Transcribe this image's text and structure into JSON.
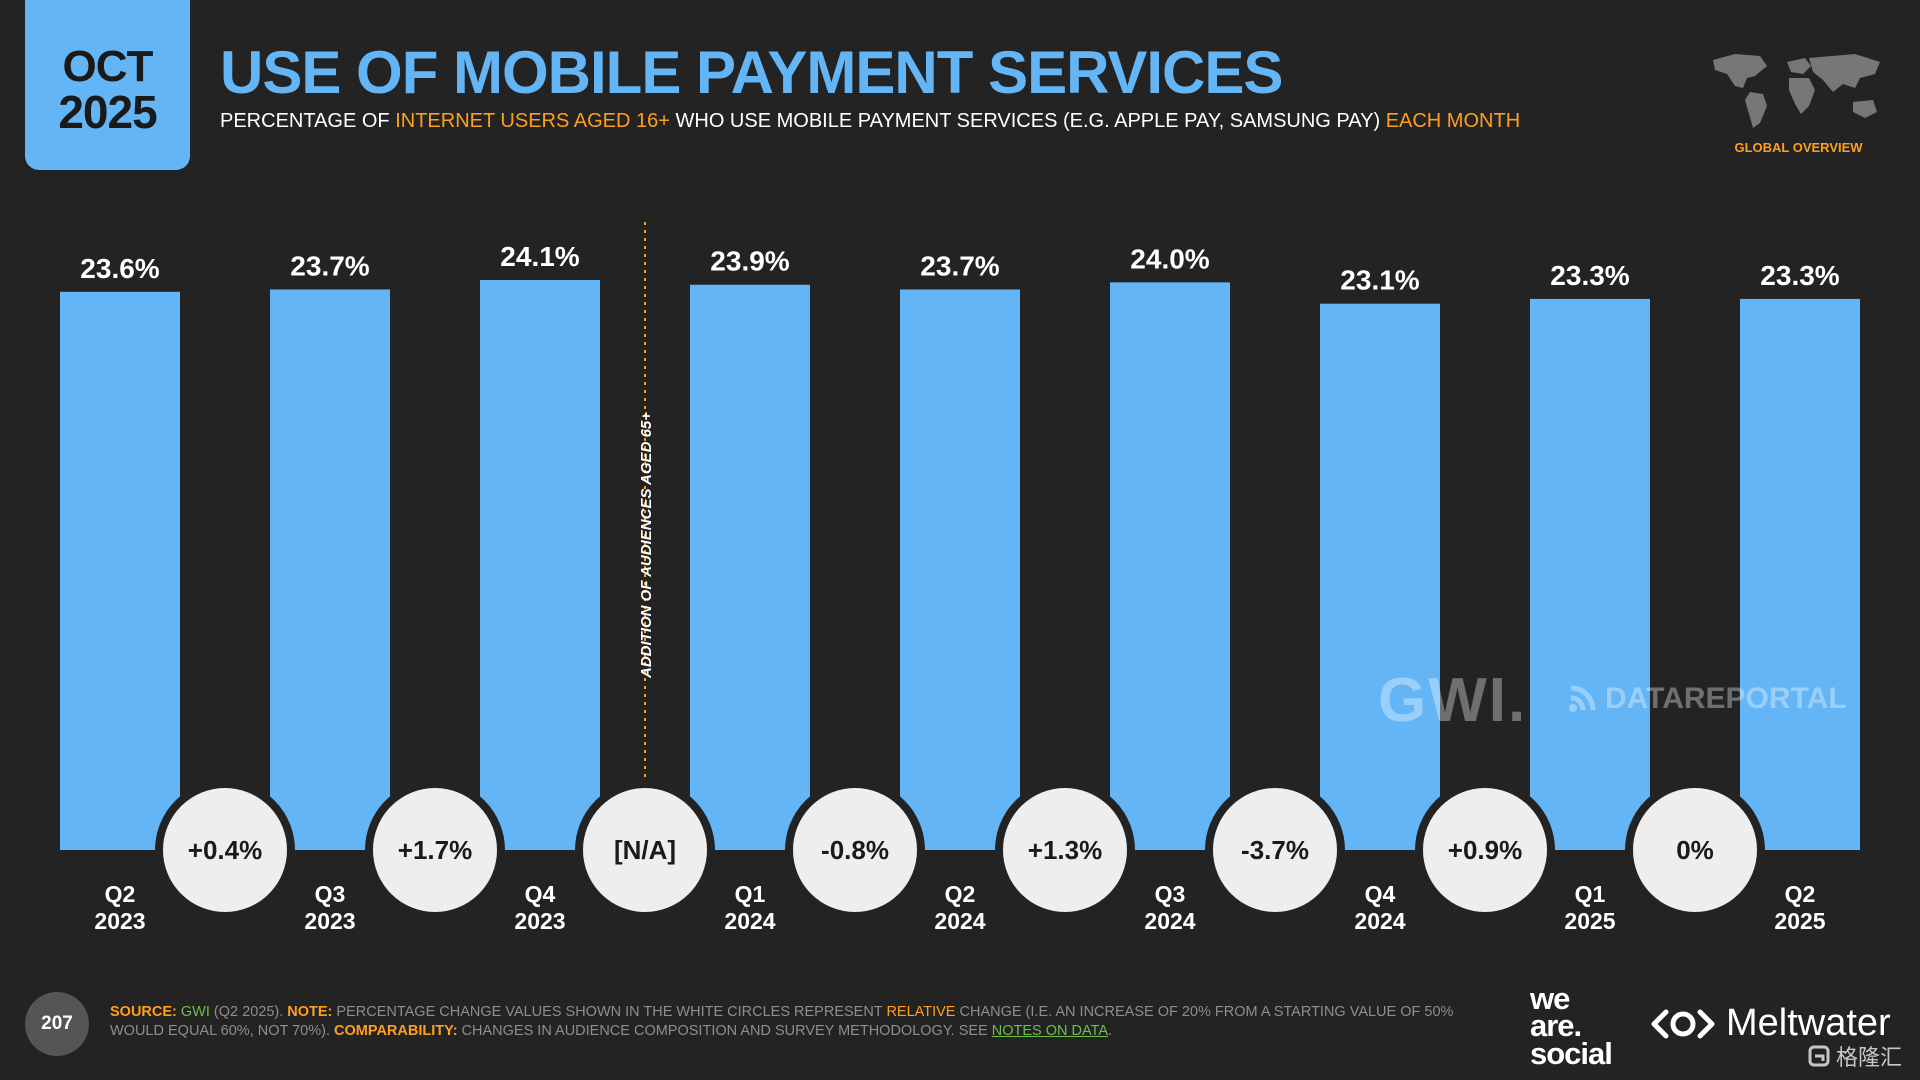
{
  "header": {
    "month": "OCT",
    "year": "2025",
    "title": "USE OF MOBILE PAYMENT SERVICES",
    "subtitle_1": "PERCENTAGE OF ",
    "subtitle_hl1": "INTERNET USERS AGED 16+",
    "subtitle_2": " WHO USE MOBILE PAYMENT SERVICES (E.G. APPLE PAY, SAMSUNG PAY) ",
    "subtitle_hl2": "EACH MONTH",
    "map_label": "GLOBAL OVERVIEW"
  },
  "colors": {
    "background": "#232323",
    "bar": "#64b5f6",
    "accent": "#ff9f1c",
    "circle": "#eeeeee",
    "link": "#6cc04a"
  },
  "chart_data": {
    "type": "bar",
    "categories": [
      "Q2\n2023",
      "Q3\n2023",
      "Q4\n2023",
      "Q1\n2024",
      "Q2\n2024",
      "Q3\n2024",
      "Q4\n2024",
      "Q1\n2025",
      "Q2\n2025"
    ],
    "values": [
      23.6,
      23.7,
      24.1,
      23.9,
      23.7,
      24.0,
      23.1,
      23.3,
      23.3
    ],
    "value_labels": [
      "23.6%",
      "23.7%",
      "24.1%",
      "23.9%",
      "23.7%",
      "24.0%",
      "23.1%",
      "23.3%",
      "23.3%"
    ],
    "changes": [
      "+0.4%",
      "+1.7%",
      "[N/A]",
      "-0.8%",
      "+1.3%",
      "-3.7%",
      "+0.9%",
      "0%"
    ],
    "annotation": "ADDITION OF AUDIENCES AGED 65+",
    "annotation_after_index": 2
  },
  "watermarks": {
    "gwi": "GWI.",
    "datareportal": "DATAREPORTAL",
    "corner": "格隆汇"
  },
  "footer": {
    "page": "207",
    "source_label": "SOURCE:",
    "source_gwi": "GWI",
    "source_rest": " (Q2 2025). ",
    "note_label": "NOTE:",
    "note_text": " PERCENTAGE CHANGE VALUES SHOWN IN THE WHITE CIRCLES REPRESENT ",
    "note_relative": "RELATIVE",
    "note_text2": " CHANGE (I.E. AN INCREASE OF 20% FROM A STARTING VALUE OF 50% WOULD EQUAL 60%, NOT 70%). ",
    "comp_label": "COMPARABILITY:",
    "comp_text": " CHANGES IN AUDIENCE COMPOSITION AND SURVEY METHODOLOGY. SEE ",
    "comp_link": "NOTES ON DATA",
    "comp_end": ".",
    "brand_we": "we",
    "brand_are": "are.",
    "brand_social": "social",
    "brand_meltwater": "Meltwater"
  }
}
